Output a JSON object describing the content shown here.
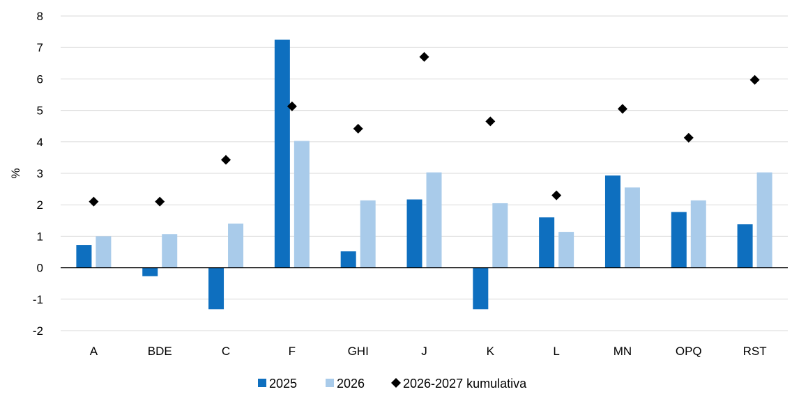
{
  "chart_data": {
    "type": "bar",
    "ylabel": "%",
    "xlabel": "",
    "ylim": [
      -2,
      8
    ],
    "yticks": [
      -2,
      -1,
      0,
      1,
      2,
      3,
      4,
      5,
      6,
      7,
      8
    ],
    "grid": true,
    "legend_position": "bottom",
    "categories": [
      "A",
      "BDE",
      "C",
      "F",
      "GHI",
      "J",
      "K",
      "L",
      "MN",
      "OPQ",
      "RST"
    ],
    "series": [
      {
        "name": "2025",
        "kind": "bar",
        "color": "#0e6fbf",
        "values": [
          0.72,
          -0.27,
          -1.32,
          7.25,
          0.52,
          2.17,
          -1.32,
          1.6,
          2.93,
          1.77,
          1.38
        ]
      },
      {
        "name": "2026",
        "kind": "bar",
        "color": "#a9cbea",
        "values": [
          1.0,
          1.07,
          1.4,
          4.03,
          2.14,
          3.03,
          2.05,
          1.14,
          2.55,
          2.14,
          3.03
        ]
      },
      {
        "name": "2026-2027 kumulativa",
        "kind": "marker",
        "marker": "diamond",
        "color": "#000000",
        "values": [
          2.1,
          2.1,
          3.43,
          5.13,
          4.42,
          6.7,
          4.65,
          2.3,
          5.05,
          4.13,
          5.97
        ]
      }
    ]
  }
}
